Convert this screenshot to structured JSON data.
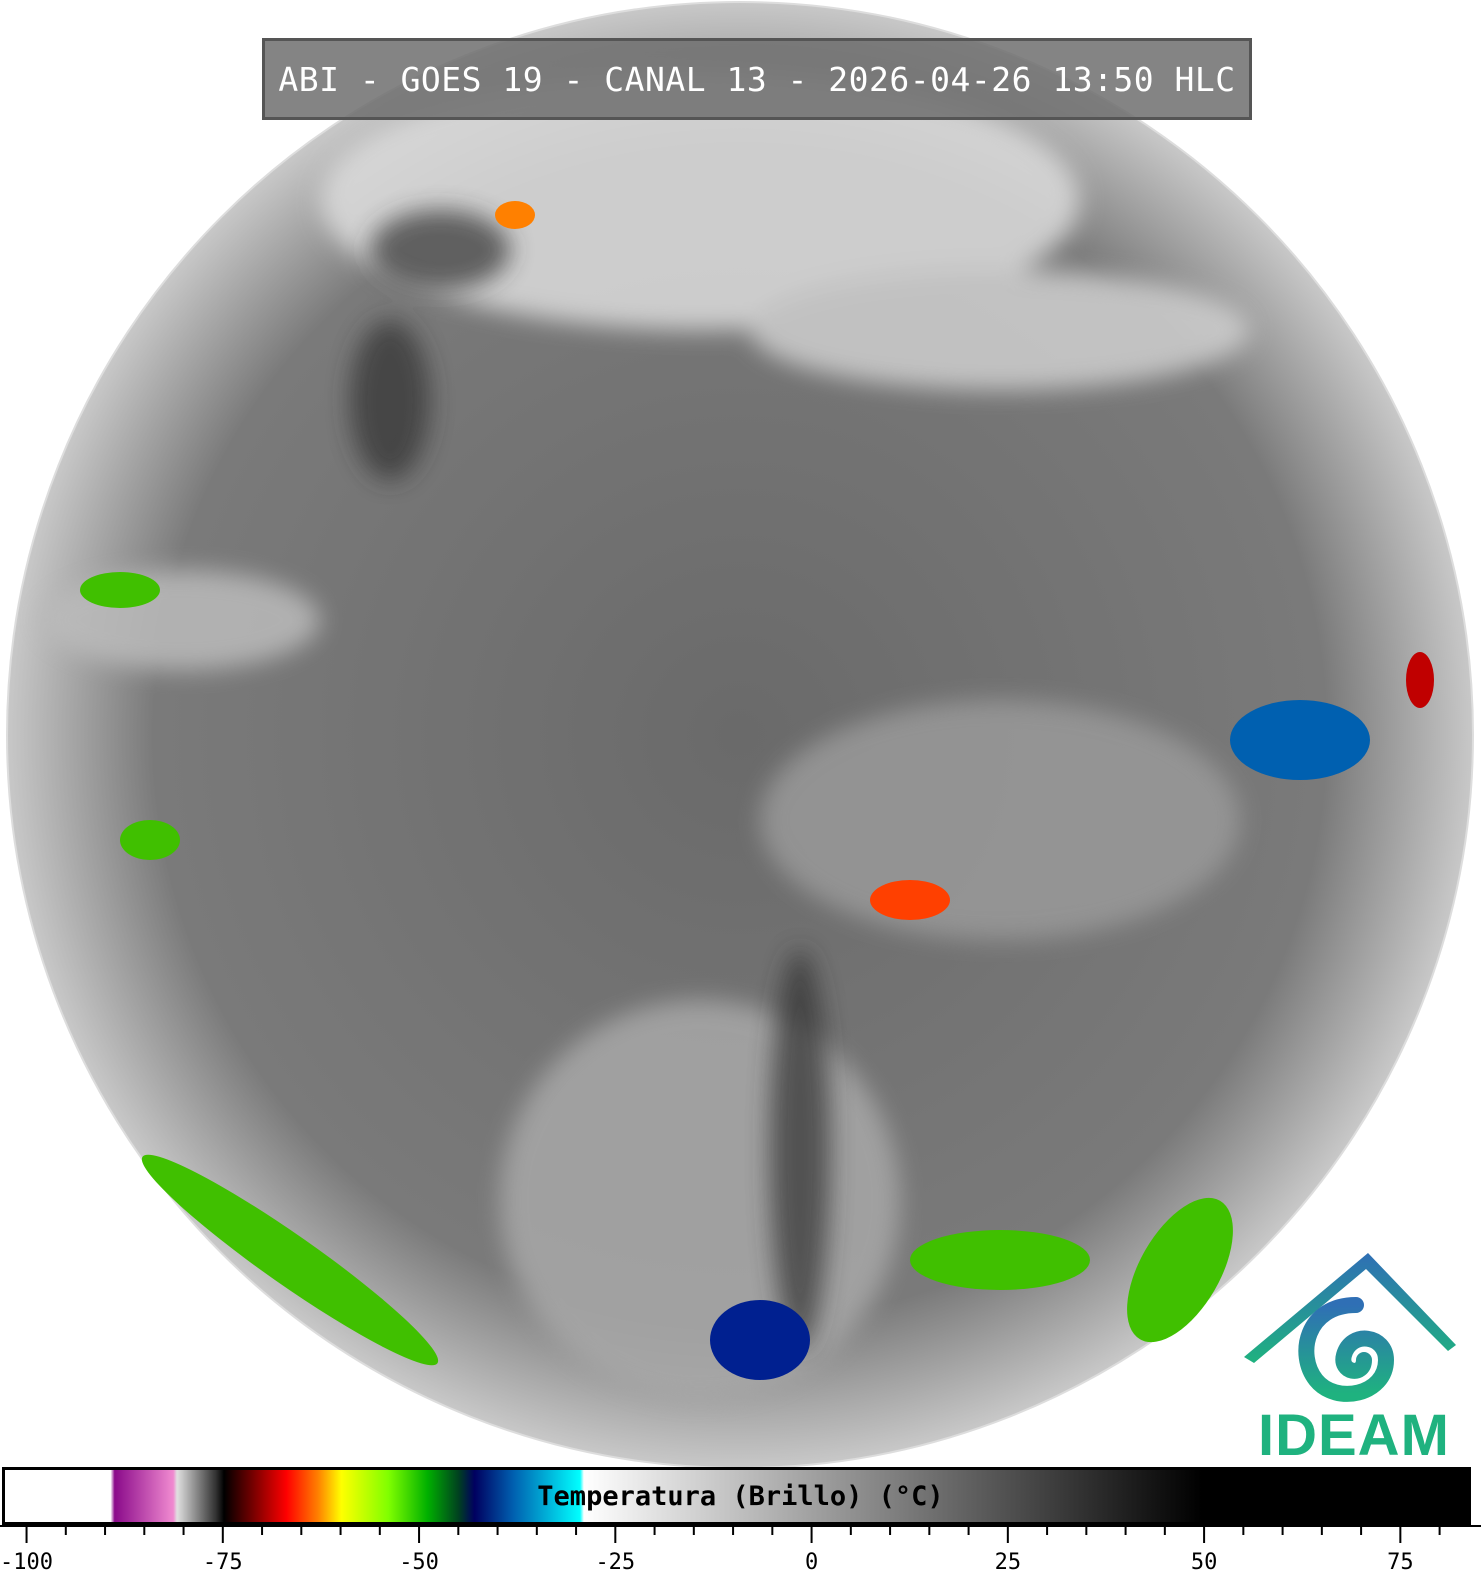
{
  "title": "ABI - GOES 19 - CANAL 13 - 2026-04-26 13:50 HLC",
  "logo": {
    "text": "IDEAM",
    "colors": {
      "roof": "#2f6fb5",
      "swirl": "#1fa88a",
      "text": "#1fb27f"
    }
  },
  "colorbar": {
    "label": "Temperatura (Brillo) (°C)",
    "range": [
      -103,
      84
    ],
    "ticks": [
      "-100",
      "-75",
      "-50",
      "-25",
      "0",
      "25",
      "50",
      "75"
    ],
    "minor_tick_step": 5,
    "stops": [
      {
        "t": -103,
        "color": "#ffffff"
      },
      {
        "t": -89.5,
        "color": "#ffffff"
      },
      {
        "t": -89,
        "color": "#8a0a8a"
      },
      {
        "t": -81.5,
        "color": "#f08ad0"
      },
      {
        "t": -81,
        "color": "#e0e0e0"
      },
      {
        "t": -76,
        "color": "#303030"
      },
      {
        "t": -75,
        "color": "#000000"
      },
      {
        "t": -69,
        "color": "#c00000"
      },
      {
        "t": -67,
        "color": "#ff0000"
      },
      {
        "t": -63,
        "color": "#ff8000"
      },
      {
        "t": -60,
        "color": "#ffff00"
      },
      {
        "t": -54,
        "color": "#80ff00"
      },
      {
        "t": -49,
        "color": "#00b000"
      },
      {
        "t": -45,
        "color": "#004020"
      },
      {
        "t": -43,
        "color": "#000060"
      },
      {
        "t": -38,
        "color": "#0060b0"
      },
      {
        "t": -29.5,
        "color": "#00ffff"
      },
      {
        "t": -29,
        "color": "#ffffff"
      },
      {
        "t": 50,
        "color": "#000000"
      },
      {
        "t": 84,
        "color": "#000000"
      }
    ]
  }
}
